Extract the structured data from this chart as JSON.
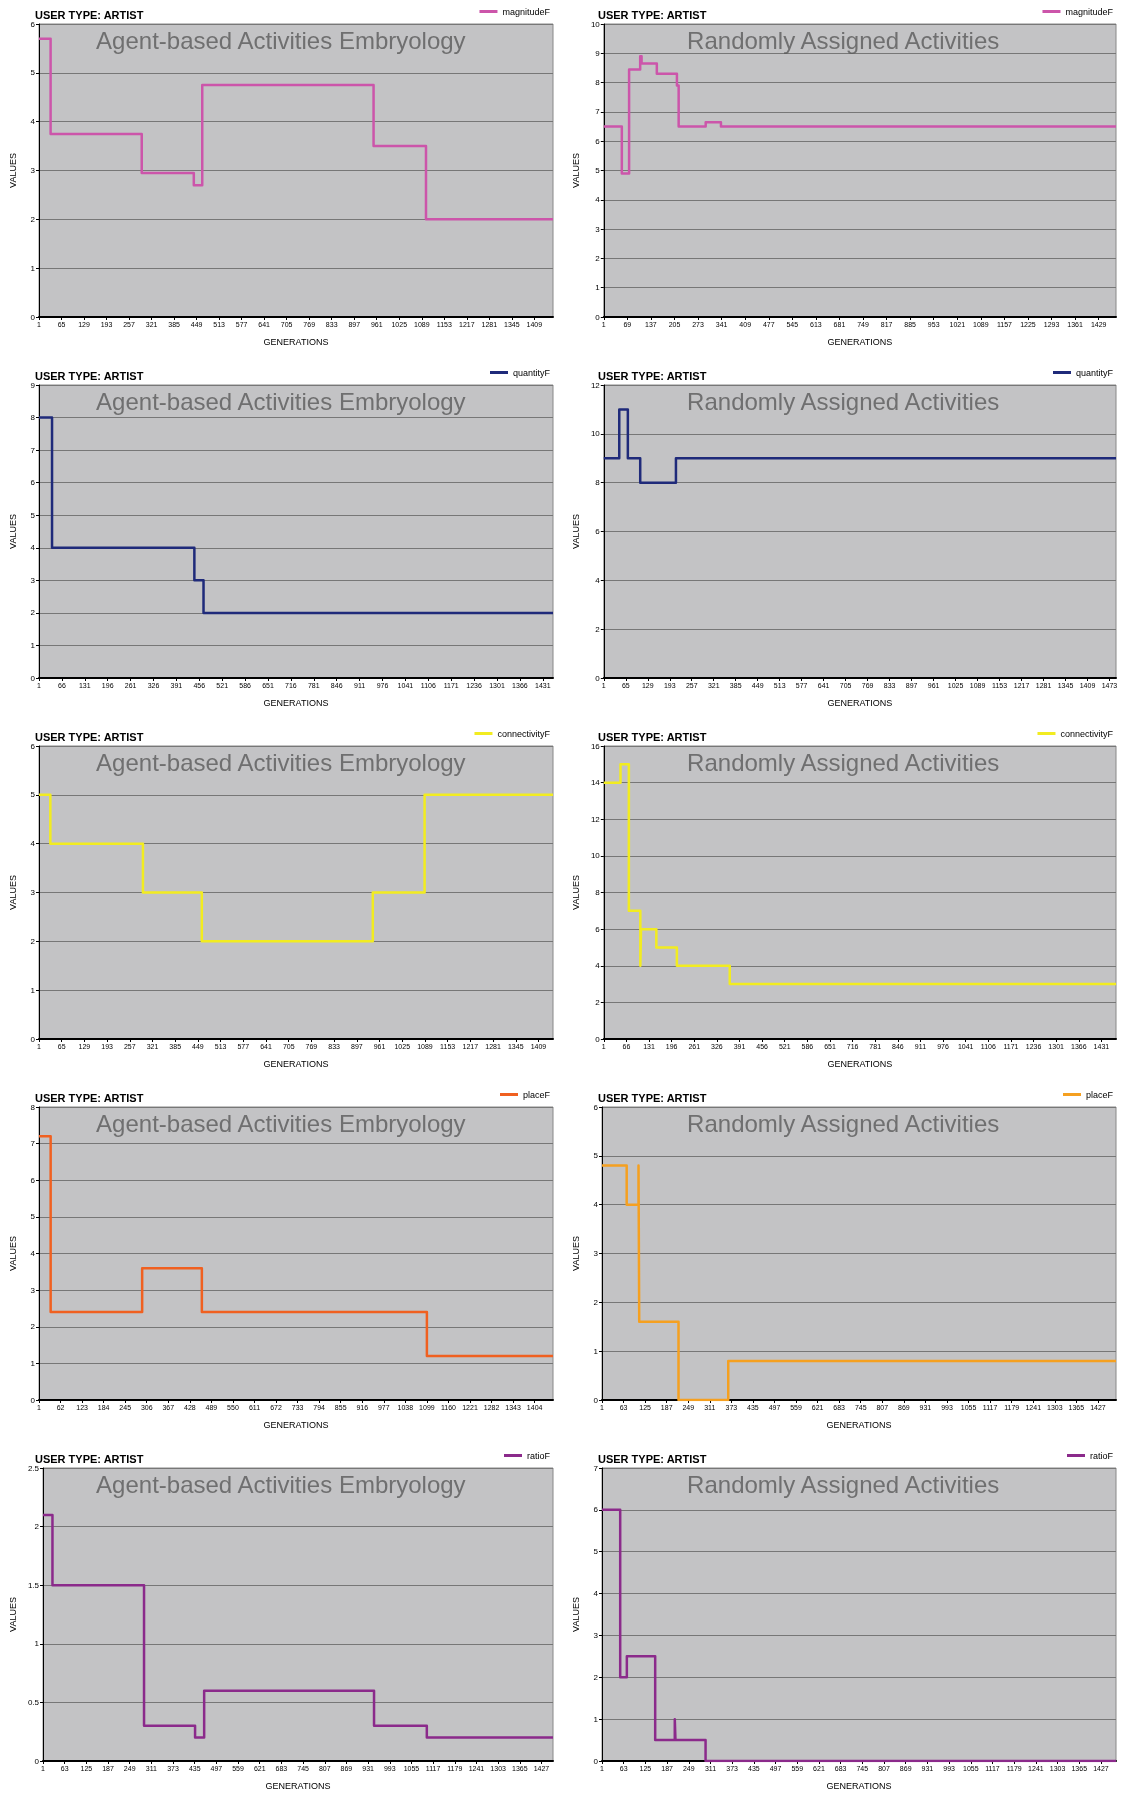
{
  "chart_data": [
    {
      "type": "step",
      "title": "USER TYPE: ARTIST",
      "xlabel": "GENERATIONS",
      "ylabel": "VALUES",
      "annotations": [
        "Agent-based Activities Embryology"
      ],
      "legend": "top right",
      "grid": "y",
      "xlim": [
        1,
        1462
      ],
      "xticks": [
        1,
        65,
        129,
        193,
        257,
        321,
        385,
        449,
        513,
        577,
        641,
        705,
        769,
        833,
        897,
        961,
        1025,
        1089,
        1153,
        1217,
        1281,
        1345,
        1409
      ],
      "ylim": [
        0,
        6
      ],
      "yticks": [
        0,
        1,
        2,
        3,
        4,
        5,
        6
      ],
      "series": [
        {
          "name": "magnitudeF",
          "color": "#cc55aa",
          "x": [
            1,
            34,
            293,
            441,
            465,
            952,
            1101,
            1462
          ],
          "values": [
            5.7,
            3.75,
            2.95,
            2.7,
            4.75,
            3.5,
            2.0,
            2.0
          ]
        }
      ]
    },
    {
      "type": "step",
      "title": "USER TYPE: ARTIST",
      "xlabel": "GENERATIONS",
      "ylabel": "VALUES",
      "annotations": [
        "Randomly Assigned Activities"
      ],
      "legend": "top right",
      "grid": "y",
      "xlim": [
        1,
        1479
      ],
      "xticks": [
        1,
        69,
        137,
        205,
        273,
        341,
        409,
        477,
        545,
        613,
        681,
        749,
        817,
        885,
        953,
        1021,
        1089,
        1157,
        1225,
        1293,
        1361,
        1429
      ],
      "ylim": [
        0,
        10
      ],
      "yticks": [
        0,
        1,
        2,
        3,
        4,
        5,
        6,
        7,
        8,
        9,
        10
      ],
      "series": [
        {
          "name": "magnitudeF",
          "color": "#cc55aa",
          "x": [
            1,
            53,
            74,
            106,
            110,
            154,
            212,
            217,
            295,
            339,
            1479
          ],
          "values": [
            6.5,
            4.9,
            8.45,
            8.9,
            8.65,
            8.3,
            7.9,
            6.5,
            6.65,
            6.5,
            6.5
          ]
        }
      ]
    },
    {
      "type": "step",
      "title": "USER TYPE: ARTIST",
      "xlabel": "GENERATIONS",
      "ylabel": "VALUES",
      "annotations": [
        "Agent-based Activities Embryology"
      ],
      "legend": "top right",
      "grid": "y",
      "xlim": [
        1,
        1460
      ],
      "xticks": [
        1,
        66,
        131,
        196,
        261,
        326,
        391,
        456,
        521,
        586,
        651,
        716,
        781,
        846,
        911,
        976,
        1041,
        1106,
        1171,
        1236,
        1301,
        1366,
        1431
      ],
      "ylim": [
        0,
        9
      ],
      "yticks": [
        0,
        1,
        2,
        3,
        4,
        5,
        6,
        7,
        8,
        9
      ],
      "series": [
        {
          "name": "quantityF",
          "color": "#1f2a7a",
          "x": [
            1,
            38,
            442,
            468,
            1460
          ],
          "values": [
            8,
            4,
            3,
            2,
            2
          ]
        }
      ]
    },
    {
      "type": "step",
      "title": "USER TYPE: ARTIST",
      "xlabel": "GENERATIONS",
      "ylabel": "VALUES",
      "annotations": [
        "Randomly Assigned Activities"
      ],
      "legend": "top right",
      "grid": "y",
      "xlim": [
        1,
        1492
      ],
      "xticks": [
        1,
        65,
        129,
        193,
        257,
        321,
        385,
        449,
        513,
        577,
        641,
        705,
        769,
        833,
        897,
        961,
        1025,
        1089,
        1153,
        1217,
        1281,
        1345,
        1409,
        1473
      ],
      "ylim": [
        0,
        12
      ],
      "yticks": [
        0,
        2,
        4,
        6,
        8,
        10,
        12
      ],
      "series": [
        {
          "name": "quantityF",
          "color": "#1f2a7a",
          "x": [
            1,
            46,
            71,
            107,
            211,
            1492
          ],
          "values": [
            9,
            11,
            9,
            8,
            9,
            9
          ]
        }
      ]
    },
    {
      "type": "step",
      "title": "USER TYPE: ARTIST",
      "xlabel": "GENERATIONS",
      "ylabel": "VALUES",
      "annotations": [
        "Agent-based Activities Embryology"
      ],
      "legend": "top right",
      "grid": "y",
      "xlim": [
        1,
        1450
      ],
      "xticks": [
        1,
        65,
        129,
        193,
        257,
        321,
        385,
        449,
        513,
        577,
        641,
        705,
        769,
        833,
        897,
        961,
        1025,
        1089,
        1153,
        1217,
        1281,
        1345,
        1409
      ],
      "ylim": [
        0,
        6
      ],
      "yticks": [
        0,
        1,
        2,
        3,
        4,
        5,
        6
      ],
      "series": [
        {
          "name": "connectivityF",
          "color": "#f2ec20",
          "x": [
            1,
            33,
            294,
            460,
            942,
            1088,
            1450
          ],
          "values": [
            5,
            4,
            3,
            2,
            3,
            5,
            5
          ]
        }
      ]
    },
    {
      "type": "step",
      "title": "USER TYPE: ARTIST",
      "xlabel": "GENERATIONS",
      "ylabel": "VALUES",
      "annotations": [
        "Randomly Assigned Activities"
      ],
      "legend": "top right",
      "grid": "y",
      "xlim": [
        1,
        1473
      ],
      "xticks": [
        1,
        66,
        131,
        196,
        261,
        326,
        391,
        456,
        521,
        586,
        651,
        716,
        781,
        846,
        911,
        976,
        1041,
        1106,
        1171,
        1236,
        1301,
        1366,
        1431
      ],
      "ylim": [
        0,
        16
      ],
      "yticks": [
        0,
        2,
        4,
        6,
        8,
        10,
        12,
        14,
        16
      ],
      "series": [
        {
          "name": "connectivityF",
          "color": "#f2ec20",
          "x": [
            1,
            49,
            73,
            106,
            108,
            152,
            211,
            363,
            1473
          ],
          "values": [
            14,
            15,
            7,
            4,
            6,
            5,
            4,
            3,
            3
          ]
        }
      ]
    },
    {
      "type": "step",
      "title": "USER TYPE: ARTIST",
      "xlabel": "GENERATIONS",
      "ylabel": "VALUES",
      "annotations": [
        "Agent-based Activities Embryology"
      ],
      "legend": "top right",
      "grid": "y",
      "xlim": [
        1,
        1456
      ],
      "xticks": [
        1,
        62,
        123,
        184,
        245,
        306,
        367,
        428,
        489,
        550,
        611,
        672,
        733,
        794,
        855,
        916,
        977,
        1038,
        1099,
        1160,
        1221,
        1282,
        1343,
        1404
      ],
      "ylim": [
        0,
        8
      ],
      "yticks": [
        0,
        1,
        2,
        3,
        4,
        5,
        6,
        7,
        8
      ],
      "series": [
        {
          "name": "placeF",
          "color": "#f06020",
          "x": [
            1,
            34,
            293,
            462,
            1099,
            1456
          ],
          "values": [
            7.2,
            2.4,
            3.6,
            2.4,
            1.2,
            1.2
          ]
        }
      ]
    },
    {
      "type": "step",
      "title": "USER TYPE: ARTIST",
      "xlabel": "GENERATIONS",
      "ylabel": "VALUES",
      "annotations": [
        "Randomly Assigned Activities"
      ],
      "legend": "top right",
      "grid": "y",
      "xlim": [
        1,
        1479
      ],
      "xticks": [
        1,
        63,
        125,
        187,
        249,
        311,
        373,
        435,
        497,
        559,
        621,
        683,
        745,
        807,
        869,
        931,
        993,
        1055,
        1117,
        1179,
        1241,
        1303,
        1365,
        1427
      ],
      "ylim": [
        0,
        6
      ],
      "yticks": [
        0,
        1,
        2,
        3,
        4,
        5,
        6
      ],
      "series": [
        {
          "name": "placeF",
          "color": "#f5a020",
          "x": [
            1,
            72,
            106,
            108,
            221,
            364,
            1479
          ],
          "values": [
            4.8,
            4.0,
            4.8,
            1.6,
            0,
            0.8,
            0.8
          ]
        }
      ]
    },
    {
      "type": "step",
      "title": "USER TYPE: ARTIST",
      "xlabel": "GENERATIONS",
      "ylabel": "VALUES",
      "annotations": [
        "Agent-based Activities Embryology"
      ],
      "legend": "top right",
      "grid": "y",
      "xlim": [
        1,
        1460
      ],
      "xticks": [
        1,
        63,
        125,
        187,
        249,
        311,
        373,
        435,
        497,
        559,
        621,
        683,
        745,
        807,
        869,
        931,
        993,
        1055,
        1117,
        1179,
        1241,
        1303,
        1365,
        1427
      ],
      "ylim": [
        0,
        2.5
      ],
      "yticks": [
        0,
        0.5,
        1,
        1.5,
        2,
        2.5
      ],
      "series": [
        {
          "name": "ratioF",
          "color": "#8b2a8b",
          "x": [
            1,
            28,
            290,
            436,
            462,
            948,
            1099,
            1460
          ],
          "values": [
            2.1,
            1.5,
            0.3,
            0.2,
            0.6,
            0.3,
            0.2,
            0.2
          ]
        }
      ]
    },
    {
      "type": "step",
      "title": "USER TYPE: ARTIST",
      "xlabel": "GENERATIONS",
      "ylabel": "VALUES",
      "annotations": [
        "Randomly Assigned Activities"
      ],
      "legend": "top right",
      "grid": "y",
      "xlim": [
        1,
        1470
      ],
      "xticks": [
        1,
        63,
        125,
        187,
        249,
        311,
        373,
        435,
        497,
        559,
        621,
        683,
        745,
        807,
        869,
        931,
        993,
        1055,
        1117,
        1179,
        1241,
        1303,
        1365,
        1427
      ],
      "ylim": [
        0,
        7
      ],
      "yticks": [
        0,
        1,
        2,
        3,
        4,
        5,
        6,
        7
      ],
      "series": [
        {
          "name": "ratioF",
          "color": "#8b2a8b",
          "x": [
            1,
            53,
            72,
            153,
            209,
            211,
            297,
            1470
          ],
          "values": [
            6,
            2,
            2.5,
            0.5,
            1,
            0.5,
            0,
            0
          ]
        }
      ]
    }
  ]
}
